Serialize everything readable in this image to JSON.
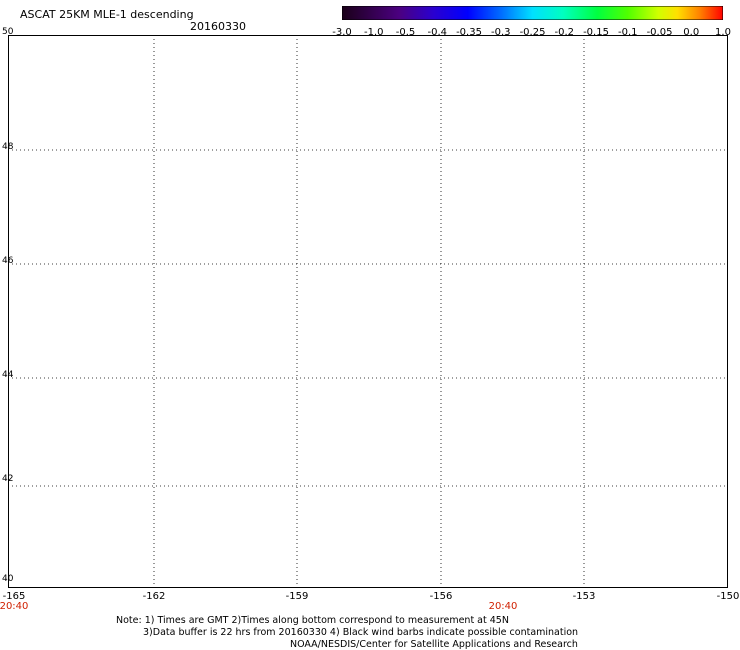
{
  "header": {
    "title": "ASCAT 25KM MLE-1 descending",
    "date": "20160330"
  },
  "colorbar": {
    "ticks": [
      "-3.0",
      "-1.0",
      "-0.5",
      "-0.4",
      "-0.35",
      "-0.3",
      "-0.25",
      "-0.2",
      "-0.15",
      "-0.1",
      "-0.05",
      "0.0",
      "1.0"
    ],
    "colors": [
      "#000000",
      "#4b0082",
      "#3b00c8",
      "#0000ff",
      "#0080ff",
      "#00c8ff",
      "#00ffff",
      "#00ffa0",
      "#00ff00",
      "#9bff00",
      "#ffff00",
      "#ffa000",
      "#ff0000"
    ]
  },
  "map": {
    "lat_labels": [
      "50",
      "48",
      "46",
      "44",
      "42",
      "40"
    ],
    "lon_labels": [
      "-165",
      "-162",
      "-159",
      "-156",
      "-153",
      "-150"
    ],
    "time_labels": [
      "20:40",
      "20:40"
    ]
  },
  "notes": {
    "line1": "Note: 1) Times are GMT 2)Times along bottom correspond to measurement at 45N",
    "line2": "3)Data buffer is 22 hrs from 20160330 4) Black wind barbs indicate possible contamination",
    "line3": "NOAA/NESDIS/Center for Satellite Applications and Research"
  }
}
